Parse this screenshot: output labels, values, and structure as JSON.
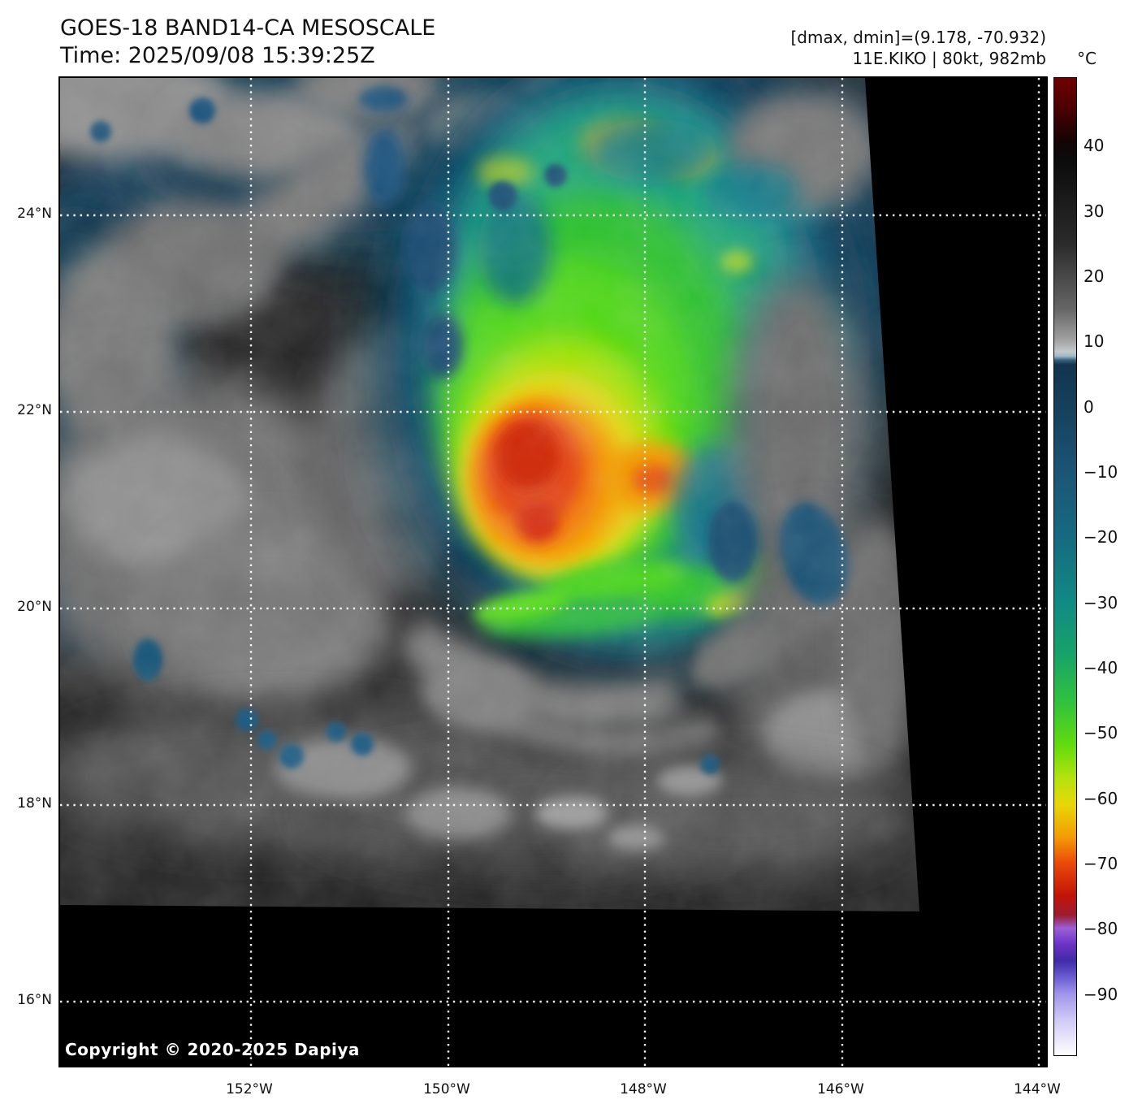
{
  "header": {
    "title": "GOES-18 BAND14-CA MESOSCALE",
    "subtitle": "Time: 2025/09/08 15:39:25Z"
  },
  "info": {
    "range_line": "[dmax, dmin]=(9.178, -70.932)",
    "storm_line": "11E.KIKO | 80kt, 982mb"
  },
  "map": {
    "lat_labels": [
      "24°N",
      "22°N",
      "20°N",
      "18°N",
      "16°N"
    ],
    "lon_labels": [
      "152°W",
      "150°W",
      "148°W",
      "146°W",
      "144°W"
    ],
    "copyright": "Copyright © 2020-2025 Dapiya"
  },
  "colorbar": {
    "unit": "°C",
    "vmax": 50.5,
    "vmin": -99.5,
    "tick_values": [
      40,
      30,
      20,
      10,
      0,
      -10,
      -20,
      -30,
      -40,
      -50,
      -60,
      -70,
      -80,
      -90
    ],
    "tick_labels": [
      "40",
      "30",
      "20",
      "10",
      "0",
      "−10",
      "−20",
      "−30",
      "−40",
      "−50",
      "−60",
      "−70",
      "−80",
      "−90"
    ],
    "stops": [
      {
        "v": 50.5,
        "c": "#700000"
      },
      {
        "v": 46.0,
        "c": "#4d0003"
      },
      {
        "v": 41.0,
        "c": "#160404"
      },
      {
        "v": 38.0,
        "c": "#0b0b0b"
      },
      {
        "v": 25.0,
        "c": "#2b2b2b"
      },
      {
        "v": 15.0,
        "c": "#666666"
      },
      {
        "v": 10.5,
        "c": "#9e9e9e"
      },
      {
        "v": 8.5,
        "c": "#c2c9cc"
      },
      {
        "v": 7.8,
        "c": "#9fb9c4"
      },
      {
        "v": 7.2,
        "c": "#35637f"
      },
      {
        "v": 6.5,
        "c": "#14344e"
      },
      {
        "v": 0.0,
        "c": "#15405c"
      },
      {
        "v": -10.0,
        "c": "#1b5575"
      },
      {
        "v": -20.0,
        "c": "#166a80"
      },
      {
        "v": -30.0,
        "c": "#108a84"
      },
      {
        "v": -38.0,
        "c": "#17a369"
      },
      {
        "v": -45.0,
        "c": "#2fc13f"
      },
      {
        "v": -52.0,
        "c": "#63dc0d"
      },
      {
        "v": -57.0,
        "c": "#b4e30f"
      },
      {
        "v": -61.0,
        "c": "#e8d708"
      },
      {
        "v": -66.0,
        "c": "#f29c05"
      },
      {
        "v": -70.0,
        "c": "#ea4a09"
      },
      {
        "v": -75.0,
        "c": "#c21407"
      },
      {
        "v": -78.0,
        "c": "#9c1c33"
      },
      {
        "v": -80.0,
        "c": "#9a5fd6"
      },
      {
        "v": -82.5,
        "c": "#6b33c4"
      },
      {
        "v": -85.0,
        "c": "#3f2ba8"
      },
      {
        "v": -87.5,
        "c": "#6a5cd0"
      },
      {
        "v": -90.0,
        "c": "#9e94ea"
      },
      {
        "v": -94.0,
        "c": "#cfc9f6"
      },
      {
        "v": -99.5,
        "c": "#ffffff"
      }
    ]
  }
}
